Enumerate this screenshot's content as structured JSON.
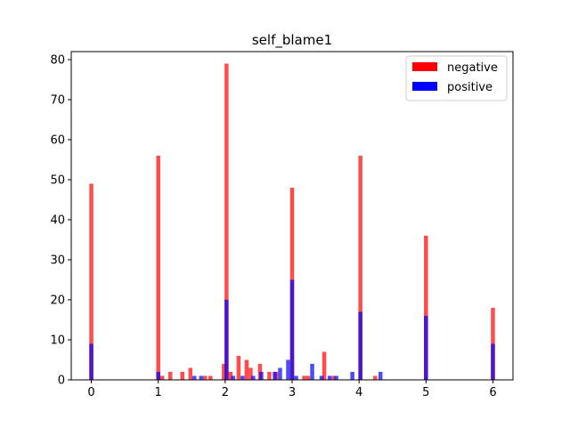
{
  "chart_data": {
    "type": "bar",
    "title": "self_blame1",
    "xlabel": "",
    "ylabel": "",
    "xlim": [
      -0.3,
      6.3
    ],
    "ylim": [
      0,
      82
    ],
    "xticks": [
      0,
      1,
      2,
      3,
      4,
      5,
      6
    ],
    "yticks": [
      0,
      10,
      20,
      30,
      40,
      50,
      60,
      70,
      80
    ],
    "bin_width": 0.06,
    "legend_position": "top-right",
    "grid": false,
    "series": [
      {
        "name": "negative",
        "color": "#ff0000",
        "alpha": 0.7,
        "points": [
          {
            "x": 0.0,
            "y": 49
          },
          {
            "x": 1.0,
            "y": 56
          },
          {
            "x": 1.06,
            "y": 1
          },
          {
            "x": 1.18,
            "y": 2
          },
          {
            "x": 1.36,
            "y": 2
          },
          {
            "x": 1.48,
            "y": 3
          },
          {
            "x": 1.7,
            "y": 1
          },
          {
            "x": 1.78,
            "y": 1
          },
          {
            "x": 1.98,
            "y": 4
          },
          {
            "x": 2.02,
            "y": 79
          },
          {
            "x": 2.08,
            "y": 2
          },
          {
            "x": 2.2,
            "y": 6
          },
          {
            "x": 2.32,
            "y": 5
          },
          {
            "x": 2.38,
            "y": 3
          },
          {
            "x": 2.52,
            "y": 4
          },
          {
            "x": 2.66,
            "y": 2
          },
          {
            "x": 2.76,
            "y": 2
          },
          {
            "x": 3.0,
            "y": 48
          },
          {
            "x": 3.18,
            "y": 1
          },
          {
            "x": 3.24,
            "y": 1
          },
          {
            "x": 3.48,
            "y": 7
          },
          {
            "x": 3.62,
            "y": 1
          },
          {
            "x": 4.02,
            "y": 56
          },
          {
            "x": 4.24,
            "y": 1
          },
          {
            "x": 5.0,
            "y": 36
          },
          {
            "x": 6.0,
            "y": 18
          }
        ]
      },
      {
        "name": "positive",
        "color": "#0000ff",
        "alpha": 0.7,
        "points": [
          {
            "x": 0.0,
            "y": 9
          },
          {
            "x": 1.0,
            "y": 2
          },
          {
            "x": 1.54,
            "y": 1
          },
          {
            "x": 1.64,
            "y": 1
          },
          {
            "x": 2.02,
            "y": 20
          },
          {
            "x": 2.12,
            "y": 1
          },
          {
            "x": 2.26,
            "y": 1
          },
          {
            "x": 2.42,
            "y": 1
          },
          {
            "x": 2.54,
            "y": 2
          },
          {
            "x": 2.74,
            "y": 2
          },
          {
            "x": 2.82,
            "y": 3
          },
          {
            "x": 2.94,
            "y": 5
          },
          {
            "x": 3.0,
            "y": 25
          },
          {
            "x": 3.06,
            "y": 1
          },
          {
            "x": 3.3,
            "y": 4
          },
          {
            "x": 3.44,
            "y": 1
          },
          {
            "x": 3.56,
            "y": 1
          },
          {
            "x": 3.66,
            "y": 1
          },
          {
            "x": 3.9,
            "y": 2
          },
          {
            "x": 4.02,
            "y": 17
          },
          {
            "x": 4.32,
            "y": 2
          },
          {
            "x": 5.0,
            "y": 16
          },
          {
            "x": 6.0,
            "y": 9
          }
        ]
      }
    ]
  }
}
